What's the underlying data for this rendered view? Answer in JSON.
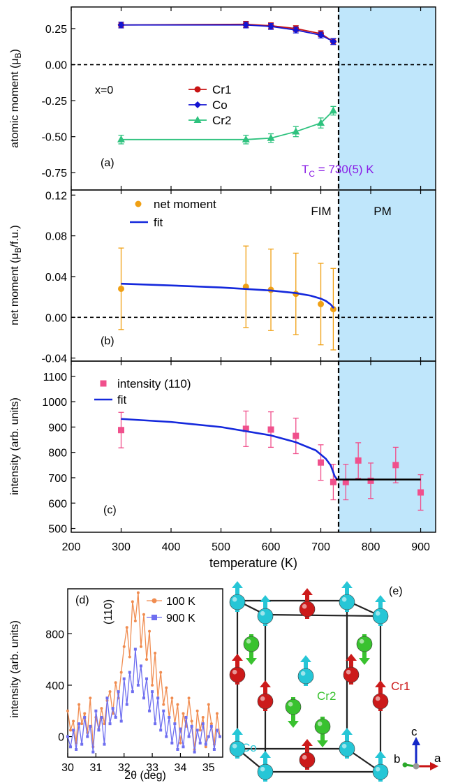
{
  "figure": {
    "x_axis_label": "temperature (K)",
    "tc_label_main": "T",
    "tc_label_sub": "C",
    "tc_label_value": " = 730(5) K",
    "phase_fim": "FIM",
    "phase_pm": "PM",
    "colors": {
      "pm_shade": "#bfe6fb",
      "cr1": "#c81414",
      "co": "#1414d2",
      "cr2": "#2ec27e",
      "net": "#f0a014",
      "intensity": "#f0508c",
      "fit": "#1428dc",
      "tc_text": "#8a1ee6",
      "d100": "#f08c50",
      "d900": "#6e6ef0"
    }
  },
  "chart_data": [
    {
      "type": "line",
      "panel_label": "(a)",
      "annotation": "x=0",
      "ylabel_main": "atomic moment (μ",
      "ylabel_sub": "B",
      "ylabel_end": ")",
      "xlim": [
        200,
        930
      ],
      "ylim": [
        -0.87,
        0.4
      ],
      "yticks": [
        0.25,
        0.0,
        -0.25,
        -0.5,
        -0.75
      ],
      "ytick_labels": [
        "0.25",
        "0.00",
        "-0.25",
        "-0.50",
        "-0.75"
      ],
      "x": [
        300,
        550,
        600,
        650,
        700,
        725
      ],
      "series": [
        {
          "name": "Cr1",
          "values": [
            0.275,
            0.28,
            0.27,
            0.25,
            0.215,
            0.16
          ],
          "err": [
            0.02,
            0.02,
            0.02,
            0.02,
            0.02,
            0.02
          ],
          "marker": "circle"
        },
        {
          "name": "Co",
          "values": [
            0.275,
            0.275,
            0.265,
            0.24,
            0.205,
            0.16
          ],
          "err": [
            0.02,
            0.02,
            0.02,
            0.02,
            0.02,
            0.02
          ],
          "marker": "diamond"
        },
        {
          "name": "Cr2",
          "values": [
            -0.52,
            -0.52,
            -0.51,
            -0.465,
            -0.405,
            -0.32
          ],
          "err": [
            0.03,
            0.03,
            0.03,
            0.035,
            0.035,
            0.03
          ],
          "marker": "triangle"
        }
      ],
      "hline": 0.0
    },
    {
      "type": "scatter",
      "panel_label": "(b)",
      "ylabel_main": "net moment (μ",
      "ylabel_sub": "B",
      "ylabel_end": "/f.u.)",
      "xlim": [
        200,
        930
      ],
      "ylim": [
        -0.043,
        0.125
      ],
      "yticks": [
        0.12,
        0.08,
        0.04,
        0.0,
        -0.04
      ],
      "ytick_labels": [
        "0.12",
        "0.08",
        "0.04",
        "0.00",
        "-0.04"
      ],
      "x": [
        300,
        550,
        600,
        650,
        700,
        725
      ],
      "series": [
        {
          "name": "net moment",
          "values": [
            0.028,
            0.03,
            0.027,
            0.023,
            0.013,
            0.008
          ],
          "err": [
            0.04,
            0.04,
            0.04,
            0.04,
            0.04,
            0.04
          ]
        }
      ],
      "fit": {
        "name": "fit",
        "x": [
          300,
          400,
          500,
          600,
          650,
          680,
          700,
          710,
          720,
          726
        ],
        "y": [
          0.033,
          0.0313,
          0.0293,
          0.0263,
          0.0238,
          0.0212,
          0.0183,
          0.0161,
          0.0125,
          0.009
        ]
      },
      "hline": 0.0
    },
    {
      "type": "scatter",
      "panel_label": "(c)",
      "ylabel": "intensity (arb. units)",
      "xlabel": "temperature (K)",
      "xlim": [
        200,
        930
      ],
      "ylim": [
        485,
        1160
      ],
      "xticks": [
        200,
        300,
        400,
        500,
        600,
        700,
        800,
        900
      ],
      "yticks": [
        1100,
        1000,
        900,
        800,
        700,
        600,
        500
      ],
      "x": [
        300,
        550,
        600,
        650,
        700,
        725,
        750,
        775,
        800,
        850,
        900
      ],
      "series": [
        {
          "name": "intensity (110)",
          "values": [
            888,
            893,
            890,
            865,
            760,
            683,
            683,
            768,
            688,
            750,
            642
          ],
          "err": [
            70,
            70,
            70,
            70,
            70,
            70,
            70,
            70,
            70,
            70,
            70
          ]
        }
      ],
      "fit": {
        "name": "fit",
        "x": [
          300,
          400,
          500,
          600,
          650,
          690,
          710,
          720,
          728,
          733
        ],
        "y": [
          932,
          920,
          900,
          867,
          840,
          808,
          775,
          748,
          705,
          693
        ]
      },
      "flat": {
        "x": [
          730,
          900
        ],
        "y": 693
      }
    },
    {
      "type": "line",
      "panel_label": "(d)",
      "peak_label": "(110)",
      "ylabel": "intensity (arb. units)",
      "xlabel": "2θ (deg)",
      "xlim": [
        30.0,
        35.5
      ],
      "ylim": [
        -160,
        1150
      ],
      "xticks": [
        30,
        31,
        32,
        33,
        34,
        35
      ],
      "yticks": [
        0,
        400,
        800
      ],
      "series": [
        {
          "name": "100 K",
          "x": [
            30.0,
            30.1,
            30.2,
            30.3,
            30.4,
            30.5,
            30.6,
            30.7,
            30.8,
            30.9,
            31.0,
            31.1,
            31.2,
            31.3,
            31.4,
            31.5,
            31.6,
            31.7,
            31.8,
            31.9,
            32.0,
            32.1,
            32.2,
            32.3,
            32.4,
            32.5,
            32.6,
            32.7,
            32.8,
            32.9,
            33.0,
            33.1,
            33.2,
            33.3,
            33.4,
            33.5,
            33.6,
            33.7,
            33.8,
            33.9,
            34.0,
            34.1,
            34.2,
            34.3,
            34.4,
            34.5,
            34.6,
            34.7,
            34.8,
            34.9,
            35.0,
            35.1,
            35.2,
            35.3,
            35.4
          ],
          "values": [
            200,
            50,
            120,
            -50,
            250,
            100,
            180,
            30,
            300,
            -80,
            150,
            60,
            220,
            100,
            280,
            350,
            180,
            420,
            300,
            500,
            700,
            850,
            620,
            1050,
            900,
            1120,
            700,
            950,
            600,
            820,
            400,
            650,
            300,
            500,
            250,
            380,
            150,
            300,
            100,
            250,
            -50,
            180,
            80,
            300,
            120,
            -100,
            200,
            50,
            150,
            -80,
            250,
            100,
            -60,
            180,
            0
          ]
        },
        {
          "name": "900 K",
          "x": [
            30.0,
            30.1,
            30.2,
            30.3,
            30.4,
            30.5,
            30.6,
            30.7,
            30.8,
            30.9,
            31.0,
            31.1,
            31.2,
            31.3,
            31.4,
            31.5,
            31.6,
            31.7,
            31.8,
            31.9,
            32.0,
            32.1,
            32.2,
            32.3,
            32.4,
            32.5,
            32.6,
            32.7,
            32.8,
            32.9,
            33.0,
            33.1,
            33.2,
            33.3,
            33.4,
            33.5,
            33.6,
            33.7,
            33.8,
            33.9,
            34.0,
            34.1,
            34.2,
            34.3,
            34.4,
            34.5,
            34.6,
            34.7,
            34.8,
            34.9,
            35.0,
            35.1,
            35.2,
            35.3,
            35.4
          ],
          "values": [
            0,
            -80,
            50,
            -100,
            100,
            -60,
            150,
            0,
            80,
            -120,
            200,
            50,
            150,
            -60,
            300,
            100,
            220,
            150,
            350,
            120,
            450,
            250,
            500,
            350,
            680,
            400,
            550,
            300,
            450,
            200,
            350,
            100,
            300,
            50,
            200,
            0,
            150,
            -50,
            100,
            -100,
            60,
            -80,
            150,
            0,
            80,
            -120,
            50,
            -50,
            100,
            -60,
            0,
            80,
            -100,
            50,
            0
          ]
        }
      ]
    }
  ],
  "structure": {
    "panel_label": "(e)",
    "atoms": {
      "co": "Co",
      "cr1": "Cr1",
      "cr2": "Cr2"
    },
    "axes": {
      "a": "a",
      "b": "b",
      "c": "c"
    }
  }
}
